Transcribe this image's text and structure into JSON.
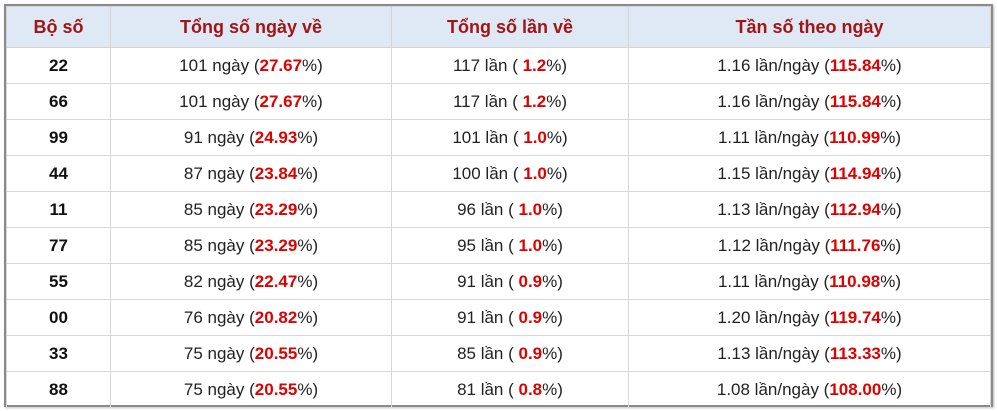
{
  "table": {
    "header": [
      "Bộ số",
      "Tổng số ngày về",
      "Tổng số lần về",
      "Tần số theo ngày"
    ],
    "rows": [
      {
        "number": "22",
        "days": [
          "101 ngày (",
          "27.67",
          "%)"
        ],
        "times": [
          "117 lần ( ",
          "1.2",
          "%)"
        ],
        "freq": [
          "1.16 lần/ngày (",
          "115.84",
          "%)"
        ]
      },
      {
        "number": "66",
        "days": [
          "101 ngày (",
          "27.67",
          "%)"
        ],
        "times": [
          "117 lần ( ",
          "1.2",
          "%)"
        ],
        "freq": [
          "1.16 lần/ngày (",
          "115.84",
          "%)"
        ]
      },
      {
        "number": "99",
        "days": [
          "91 ngày (",
          "24.93",
          "%)"
        ],
        "times": [
          "101 lần ( ",
          "1.0",
          "%)"
        ],
        "freq": [
          "1.11 lần/ngày (",
          "110.99",
          "%)"
        ]
      },
      {
        "number": "44",
        "days": [
          "87 ngày (",
          "23.84",
          "%)"
        ],
        "times": [
          "100 lần ( ",
          "1.0",
          "%)"
        ],
        "freq": [
          "1.15 lần/ngày (",
          "114.94",
          "%)"
        ]
      },
      {
        "number": "11",
        "days": [
          "85 ngày (",
          "23.29",
          "%)"
        ],
        "times": [
          "96 lần ( ",
          "1.0",
          "%)"
        ],
        "freq": [
          "1.13 lần/ngày (",
          "112.94",
          "%)"
        ]
      },
      {
        "number": "77",
        "days": [
          "85 ngày (",
          "23.29",
          "%)"
        ],
        "times": [
          "95 lần ( ",
          "1.0",
          "%)"
        ],
        "freq": [
          "1.12 lần/ngày (",
          "111.76",
          "%)"
        ]
      },
      {
        "number": "55",
        "days": [
          "82 ngày (",
          "22.47",
          "%)"
        ],
        "times": [
          "91 lần ( ",
          "0.9",
          "%)"
        ],
        "freq": [
          "1.11 lần/ngày (",
          "110.98",
          "%)"
        ]
      },
      {
        "number": "00",
        "days": [
          "76 ngày (",
          "20.82",
          "%)"
        ],
        "times": [
          "91 lần ( ",
          "0.9",
          "%)"
        ],
        "freq": [
          "1.20 lần/ngày (",
          "119.74",
          "%)"
        ]
      },
      {
        "number": "33",
        "days": [
          "75 ngày (",
          "20.55",
          "%)"
        ],
        "times": [
          "85 lần ( ",
          "0.9",
          "%)"
        ],
        "freq": [
          "1.13 lần/ngày (",
          "113.33",
          "%)"
        ]
      },
      {
        "number": "88",
        "days": [
          "75 ngày (",
          "20.55",
          "%)"
        ],
        "times": [
          "81 lần ( ",
          "0.8",
          "%)"
        ],
        "freq": [
          "1.08 lần/ngày (",
          "108.00",
          "%)"
        ]
      }
    ]
  }
}
